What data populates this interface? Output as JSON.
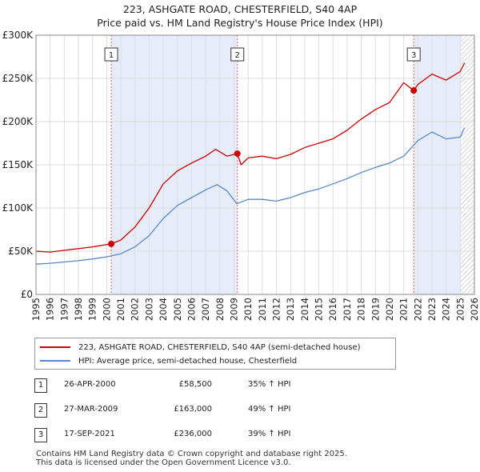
{
  "title_line1": "223, ASHGATE ROAD, CHESTERFIELD, S40 4AP",
  "title_line2": "Price paid vs. HM Land Registry's House Price Index (HPI)",
  "colors": {
    "property": "#cc0000",
    "hpi": "#5588cc",
    "shade": "#e6ecfa",
    "vline": "#e06060"
  },
  "chart_data": {
    "type": "line",
    "title": "223, ASHGATE ROAD, CHESTERFIELD, S40 4AP — Price paid vs. HM Land Registry's House Price Index (HPI)",
    "xlim": [
      1995,
      2026
    ],
    "ylim": [
      0,
      300000
    ],
    "x_ticks": [
      "1995",
      "1996",
      "1997",
      "1998",
      "1999",
      "2000",
      "2001",
      "2002",
      "2003",
      "2004",
      "2005",
      "2006",
      "2007",
      "2008",
      "2009",
      "2010",
      "2011",
      "2012",
      "2013",
      "2014",
      "2015",
      "2016",
      "2017",
      "2018",
      "2019",
      "2020",
      "2021",
      "2022",
      "2023",
      "2024",
      "2025",
      "2026"
    ],
    "y_ticks": [
      {
        "value": 0,
        "label": "£0"
      },
      {
        "value": 50000,
        "label": "£50K"
      },
      {
        "value": 100000,
        "label": "£100K"
      },
      {
        "value": 150000,
        "label": "£150K"
      },
      {
        "value": 200000,
        "label": "£200K"
      },
      {
        "value": 250000,
        "label": "£250K"
      },
      {
        "value": 300000,
        "label": "£300K"
      }
    ],
    "series": [
      {
        "name": "223, ASHGATE ROAD, CHESTERFIELD, S40 4AP (semi-detached house)",
        "x": [
          1995,
          1996,
          1997,
          1998,
          1999,
          2000.32,
          2001,
          2002,
          2003,
          2004,
          2005,
          2006,
          2007,
          2007.7,
          2008.5,
          2009.24,
          2009.5,
          2010,
          2011,
          2012,
          2013,
          2014,
          2015,
          2016,
          2017,
          2018,
          2019,
          2020,
          2021,
          2021.71,
          2022,
          2023,
          2024,
          2025,
          2025.3
        ],
        "values": [
          50000,
          49000,
          51000,
          53000,
          55000,
          58500,
          63000,
          78000,
          100000,
          128000,
          143000,
          152000,
          160000,
          168000,
          160000,
          163000,
          150000,
          158000,
          160000,
          157000,
          162000,
          170000,
          175000,
          180000,
          190000,
          203000,
          214000,
          222000,
          245000,
          236000,
          243000,
          255000,
          248000,
          258000,
          268000
        ]
      },
      {
        "name": "HPI: Average price, semi-detached house, Chesterfield",
        "x": [
          1995,
          1996,
          1997,
          1998,
          1999,
          2000,
          2001,
          2002,
          2003,
          2004,
          2005,
          2006,
          2007,
          2007.8,
          2008.5,
          2009.2,
          2010,
          2011,
          2012,
          2013,
          2014,
          2015,
          2016,
          2017,
          2018,
          2019,
          2020,
          2021,
          2022,
          2023,
          2024,
          2025,
          2025.3
        ],
        "values": [
          35000,
          36000,
          37500,
          39000,
          41000,
          43500,
          47000,
          55000,
          68000,
          88000,
          103000,
          112000,
          121000,
          127000,
          120000,
          105000,
          110000,
          110000,
          108000,
          112000,
          118000,
          122000,
          128000,
          134000,
          141000,
          147000,
          152000,
          160000,
          178000,
          188000,
          180000,
          182000,
          193000
        ]
      }
    ],
    "annotations": [
      {
        "label": "1",
        "x": 2000.32,
        "y": 58500
      },
      {
        "label": "2",
        "x": 2009.24,
        "y": 163000
      },
      {
        "label": "3",
        "x": 2021.71,
        "y": 236000
      }
    ],
    "hatched_from": 2025.0
  },
  "legend": {
    "property": "223, ASHGATE ROAD, CHESTERFIELD, S40 4AP (semi-detached house)",
    "hpi": "HPI: Average price, semi-detached house, Chesterfield"
  },
  "transactions": [
    {
      "num": "1",
      "date": "26-APR-2000",
      "price": "£58,500",
      "hpi": "35% ↑ HPI"
    },
    {
      "num": "2",
      "date": "27-MAR-2009",
      "price": "£163,000",
      "hpi": "49% ↑ HPI"
    },
    {
      "num": "3",
      "date": "17-SEP-2021",
      "price": "£236,000",
      "hpi": "39% ↑ HPI"
    }
  ],
  "footer": {
    "line1": "Contains HM Land Registry data © Crown copyright and database right 2025.",
    "line2": "This data is licensed under the Open Government Licence v3.0."
  }
}
